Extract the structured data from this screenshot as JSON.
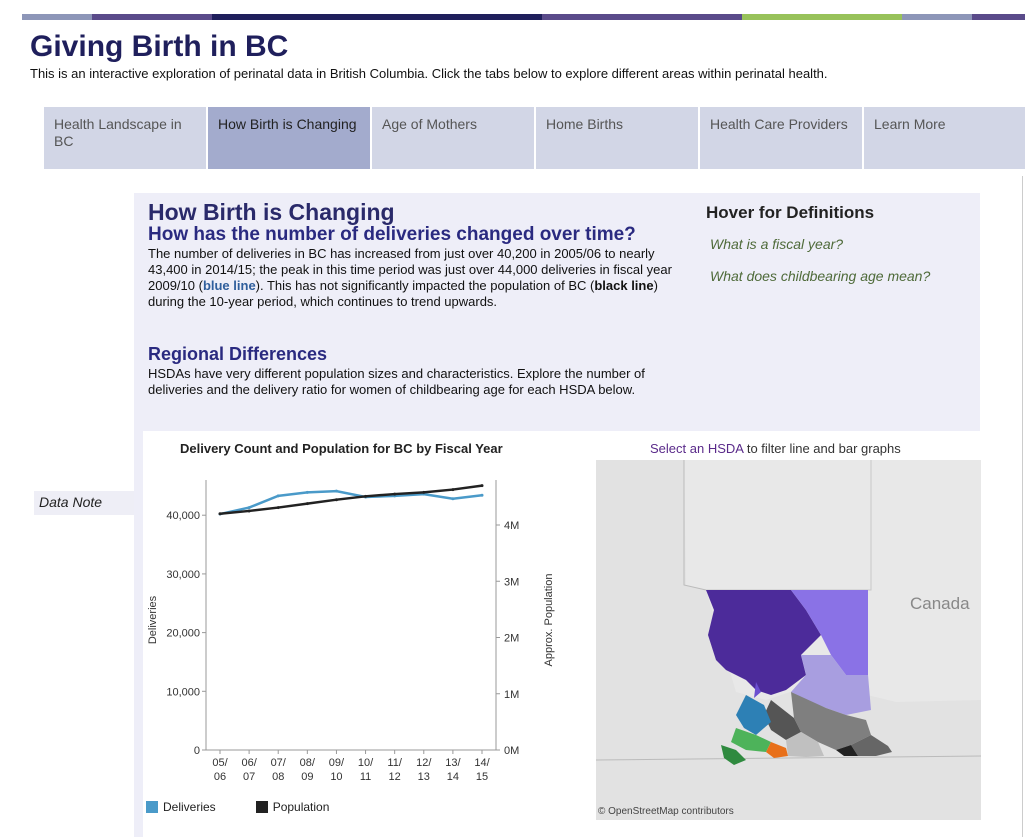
{
  "app": {
    "title": "Giving Birth in BC",
    "subtitle": "This is an interactive exploration of perinatal data in British Columbia. Click the tabs below to explore different areas within perinatal health.",
    "topbar_colors": [
      "#8d96b8",
      "#5a4b8a",
      "#1f1f5c",
      "#5a4b8a",
      "#98c25a",
      "#8d96b8",
      "#5a4b8a"
    ]
  },
  "tabs": [
    {
      "label": "Health Landscape in BC",
      "active": false
    },
    {
      "label": "How Birth is Changing",
      "active": true
    },
    {
      "label": "Age of Mothers",
      "active": false
    },
    {
      "label": "Home Births",
      "active": false
    },
    {
      "label": "Health Care Providers",
      "active": false
    },
    {
      "label": "Learn More",
      "active": false
    }
  ],
  "content": {
    "heading": "How Birth is Changing",
    "question": "How has the number of deliveries changed over time?",
    "para1_a": "The number of deliveries in BC has increased from just over 40,200 in 2005/06 to nearly 43,400 in 2014/15; the peak in this time period was just over 44,000 deliveries in fiscal year 2009/10 (",
    "para1_blue": "blue line",
    "para1_b": "). This has not significantly impacted the population of BC (",
    "para1_black": "black line",
    "para1_c": ") during the 10-year period, which continues to trend upwards.",
    "regional_heading": "Regional Differences",
    "para2": "HSDAs have very different population sizes and characteristics. Explore the number of deliveries and the delivery ratio for women of childbearing age for each HSDA below."
  },
  "definitions": {
    "title": "Hover for Definitions",
    "items": [
      "What is a fiscal year?",
      "What does childbearing age mean?"
    ]
  },
  "data_note": "Data Note",
  "map": {
    "hint_link": "Select an HSDA",
    "hint_rest": " to filter line and bar graphs",
    "country_label": "Canada",
    "attribution": "© OpenStreetMap contributors"
  },
  "chart_data": {
    "type": "line",
    "title_pre": "Delivery Count and Population for ",
    "title_region": "BC",
    "title_post": " by Fiscal Year",
    "categories": [
      "05/\n06",
      "06/\n07",
      "07/\n08",
      "08/\n09",
      "09/\n10",
      "10/\n11",
      "11/\n12",
      "12/\n13",
      "13/\n14",
      "14/\n15"
    ],
    "x_top": [
      "05/",
      "06/",
      "07/",
      "08/",
      "09/",
      "10/",
      "11/",
      "12/",
      "13/",
      "14/"
    ],
    "x_bottom": [
      "06",
      "07",
      "08",
      "09",
      "10",
      "11",
      "12",
      "13",
      "14",
      "15"
    ],
    "ylabel": "Deliveries",
    "y2label": "Approx. Population",
    "ylim": [
      0,
      46000
    ],
    "yticks": [
      0,
      10000,
      20000,
      30000,
      40000
    ],
    "ytick_labels": [
      "0",
      "10,000",
      "20,000",
      "30,000",
      "40,000"
    ],
    "y2lim": [
      0,
      4800000
    ],
    "y2ticks": [
      0,
      1000000,
      2000000,
      3000000,
      4000000
    ],
    "y2tick_labels": [
      "0M",
      "1M",
      "2M",
      "3M",
      "4M"
    ],
    "series": [
      {
        "name": "Deliveries",
        "axis": "left",
        "color": "#4a9ac9",
        "values": [
          40200,
          41300,
          43300,
          43900,
          44100,
          43100,
          43300,
          43600,
          42800,
          43400
        ]
      },
      {
        "name": "Population",
        "axis": "right",
        "color": "#222222",
        "values": [
          4200000,
          4250000,
          4310000,
          4380000,
          4450000,
          4510000,
          4550000,
          4580000,
          4630000,
          4700000
        ]
      }
    ]
  }
}
